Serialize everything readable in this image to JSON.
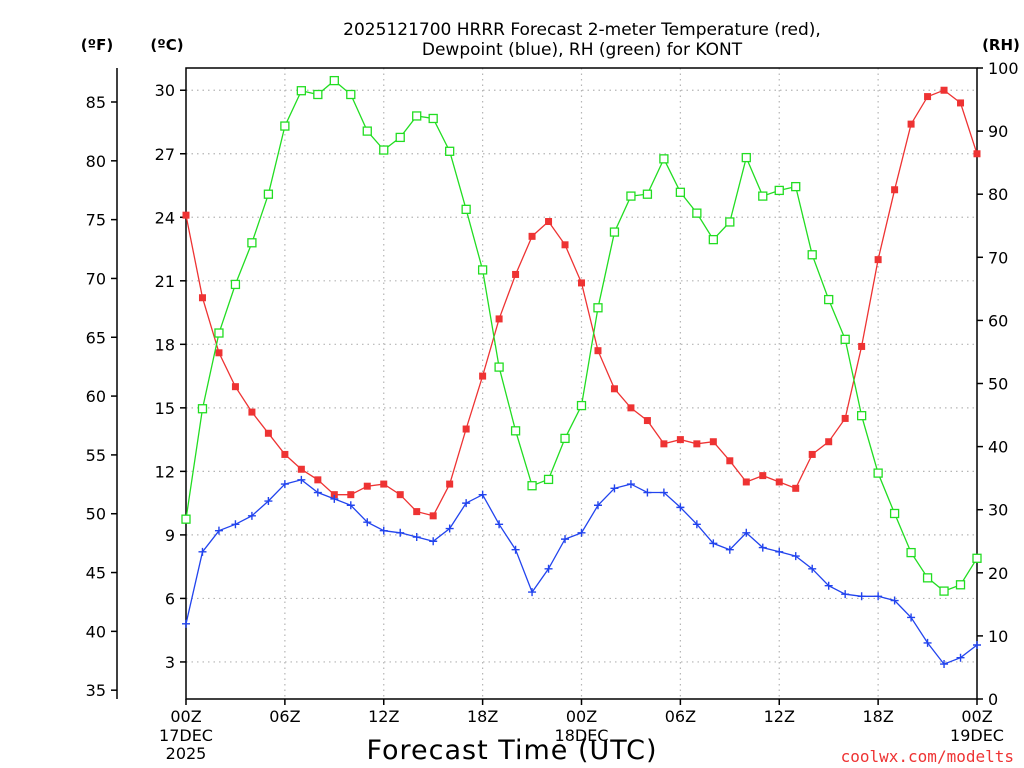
{
  "chart_data": {
    "type": "line",
    "title_line1": "2025121700 HRRR Forecast 2-meter Temperature (red),",
    "title_line2": "Dewpoint (blue), RH (green) for KONT",
    "xlabel": "Forecast Time (UTC)",
    "credit": "coolwx.com/modelts",
    "units": {
      "fahrenheit": "(ºF)",
      "celsius": "(ºC)",
      "rh": "(RH)"
    },
    "x_ticks": [
      {
        "hour": 0,
        "line1": "00Z",
        "line2": "17DEC",
        "line3": "2025"
      },
      {
        "hour": 6,
        "line1": "06Z",
        "line2": "",
        "line3": ""
      },
      {
        "hour": 12,
        "line1": "12Z",
        "line2": "",
        "line3": ""
      },
      {
        "hour": 18,
        "line1": "18Z",
        "line2": "",
        "line3": ""
      },
      {
        "hour": 24,
        "line1": "00Z",
        "line2": "18DEC",
        "line3": ""
      },
      {
        "hour": 30,
        "line1": "06Z",
        "line2": "",
        "line3": ""
      },
      {
        "hour": 36,
        "line1": "12Z",
        "line2": "",
        "line3": ""
      },
      {
        "hour": 42,
        "line1": "18Z",
        "line2": "",
        "line3": ""
      },
      {
        "hour": 48,
        "line1": "00Z",
        "line2": "19DEC",
        "line3": ""
      }
    ],
    "xlim": [
      0,
      48
    ],
    "celsius_ticks": [
      "3",
      "6",
      "9",
      "12",
      "15",
      "18",
      "21",
      "24",
      "27",
      "30"
    ],
    "fahrenheit_ticks": [
      "35",
      "40",
      "45",
      "50",
      "55",
      "60",
      "65",
      "70",
      "75",
      "80",
      "85"
    ],
    "rh_ticks": [
      "0",
      "10",
      "20",
      "30",
      "40",
      "50",
      "60",
      "70",
      "80",
      "90",
      "100"
    ],
    "celsius_range": [
      1.25,
      31.05
    ],
    "rh_range": [
      0,
      100
    ],
    "grid": true,
    "series": [
      {
        "name": "Temperature",
        "unit": "C",
        "color": "#ee3333",
        "marker": "filled-square",
        "values": [
          24.1,
          20.2,
          17.6,
          16.0,
          14.8,
          13.8,
          12.8,
          12.1,
          11.6,
          10.9,
          10.9,
          11.3,
          11.4,
          10.9,
          10.1,
          9.9,
          11.4,
          14.0,
          16.5,
          19.2,
          21.3,
          23.1,
          23.8,
          22.7,
          20.9,
          17.7,
          15.9,
          15.0,
          14.4,
          13.3,
          13.5,
          13.3,
          13.4,
          12.5,
          11.5,
          11.8,
          11.5,
          11.2,
          12.8,
          13.4,
          14.5,
          17.9,
          22.0,
          25.3,
          28.4,
          29.7,
          30.0,
          29.4,
          27.0
        ]
      },
      {
        "name": "Dewpoint",
        "unit": "C",
        "color": "#2244ee",
        "marker": "plus",
        "values": [
          4.8,
          8.2,
          9.2,
          9.5,
          9.9,
          10.6,
          11.4,
          11.6,
          11.0,
          10.7,
          10.4,
          9.6,
          9.2,
          9.1,
          8.9,
          8.7,
          9.3,
          10.5,
          10.9,
          9.5,
          8.3,
          6.3,
          7.4,
          8.8,
          9.1,
          10.4,
          11.2,
          11.4,
          11.0,
          11.0,
          10.3,
          9.5,
          8.6,
          8.3,
          9.1,
          8.4,
          8.2,
          8.0,
          7.4,
          6.6,
          6.2,
          6.1,
          6.1,
          5.9,
          5.1,
          3.9,
          2.9,
          3.2,
          3.8
        ]
      },
      {
        "name": "RH",
        "unit": "%",
        "color": "#22dd22",
        "marker": "open-square",
        "values": [
          28.5,
          46.0,
          58.0,
          65.7,
          72.3,
          80.0,
          90.8,
          96.4,
          95.8,
          98.0,
          95.8,
          90.0,
          87.0,
          89.0,
          92.4,
          92.0,
          86.8,
          77.6,
          68.0,
          52.6,
          42.5,
          33.8,
          34.8,
          41.3,
          46.5,
          62.0,
          74.0,
          79.7,
          80.0,
          85.6,
          80.3,
          77.0,
          72.8,
          75.6,
          85.8,
          79.7,
          80.6,
          81.2,
          70.4,
          63.3,
          57.0,
          44.9,
          35.8,
          29.4,
          23.2,
          19.2,
          17.1,
          18.1,
          22.3
        ]
      }
    ]
  }
}
